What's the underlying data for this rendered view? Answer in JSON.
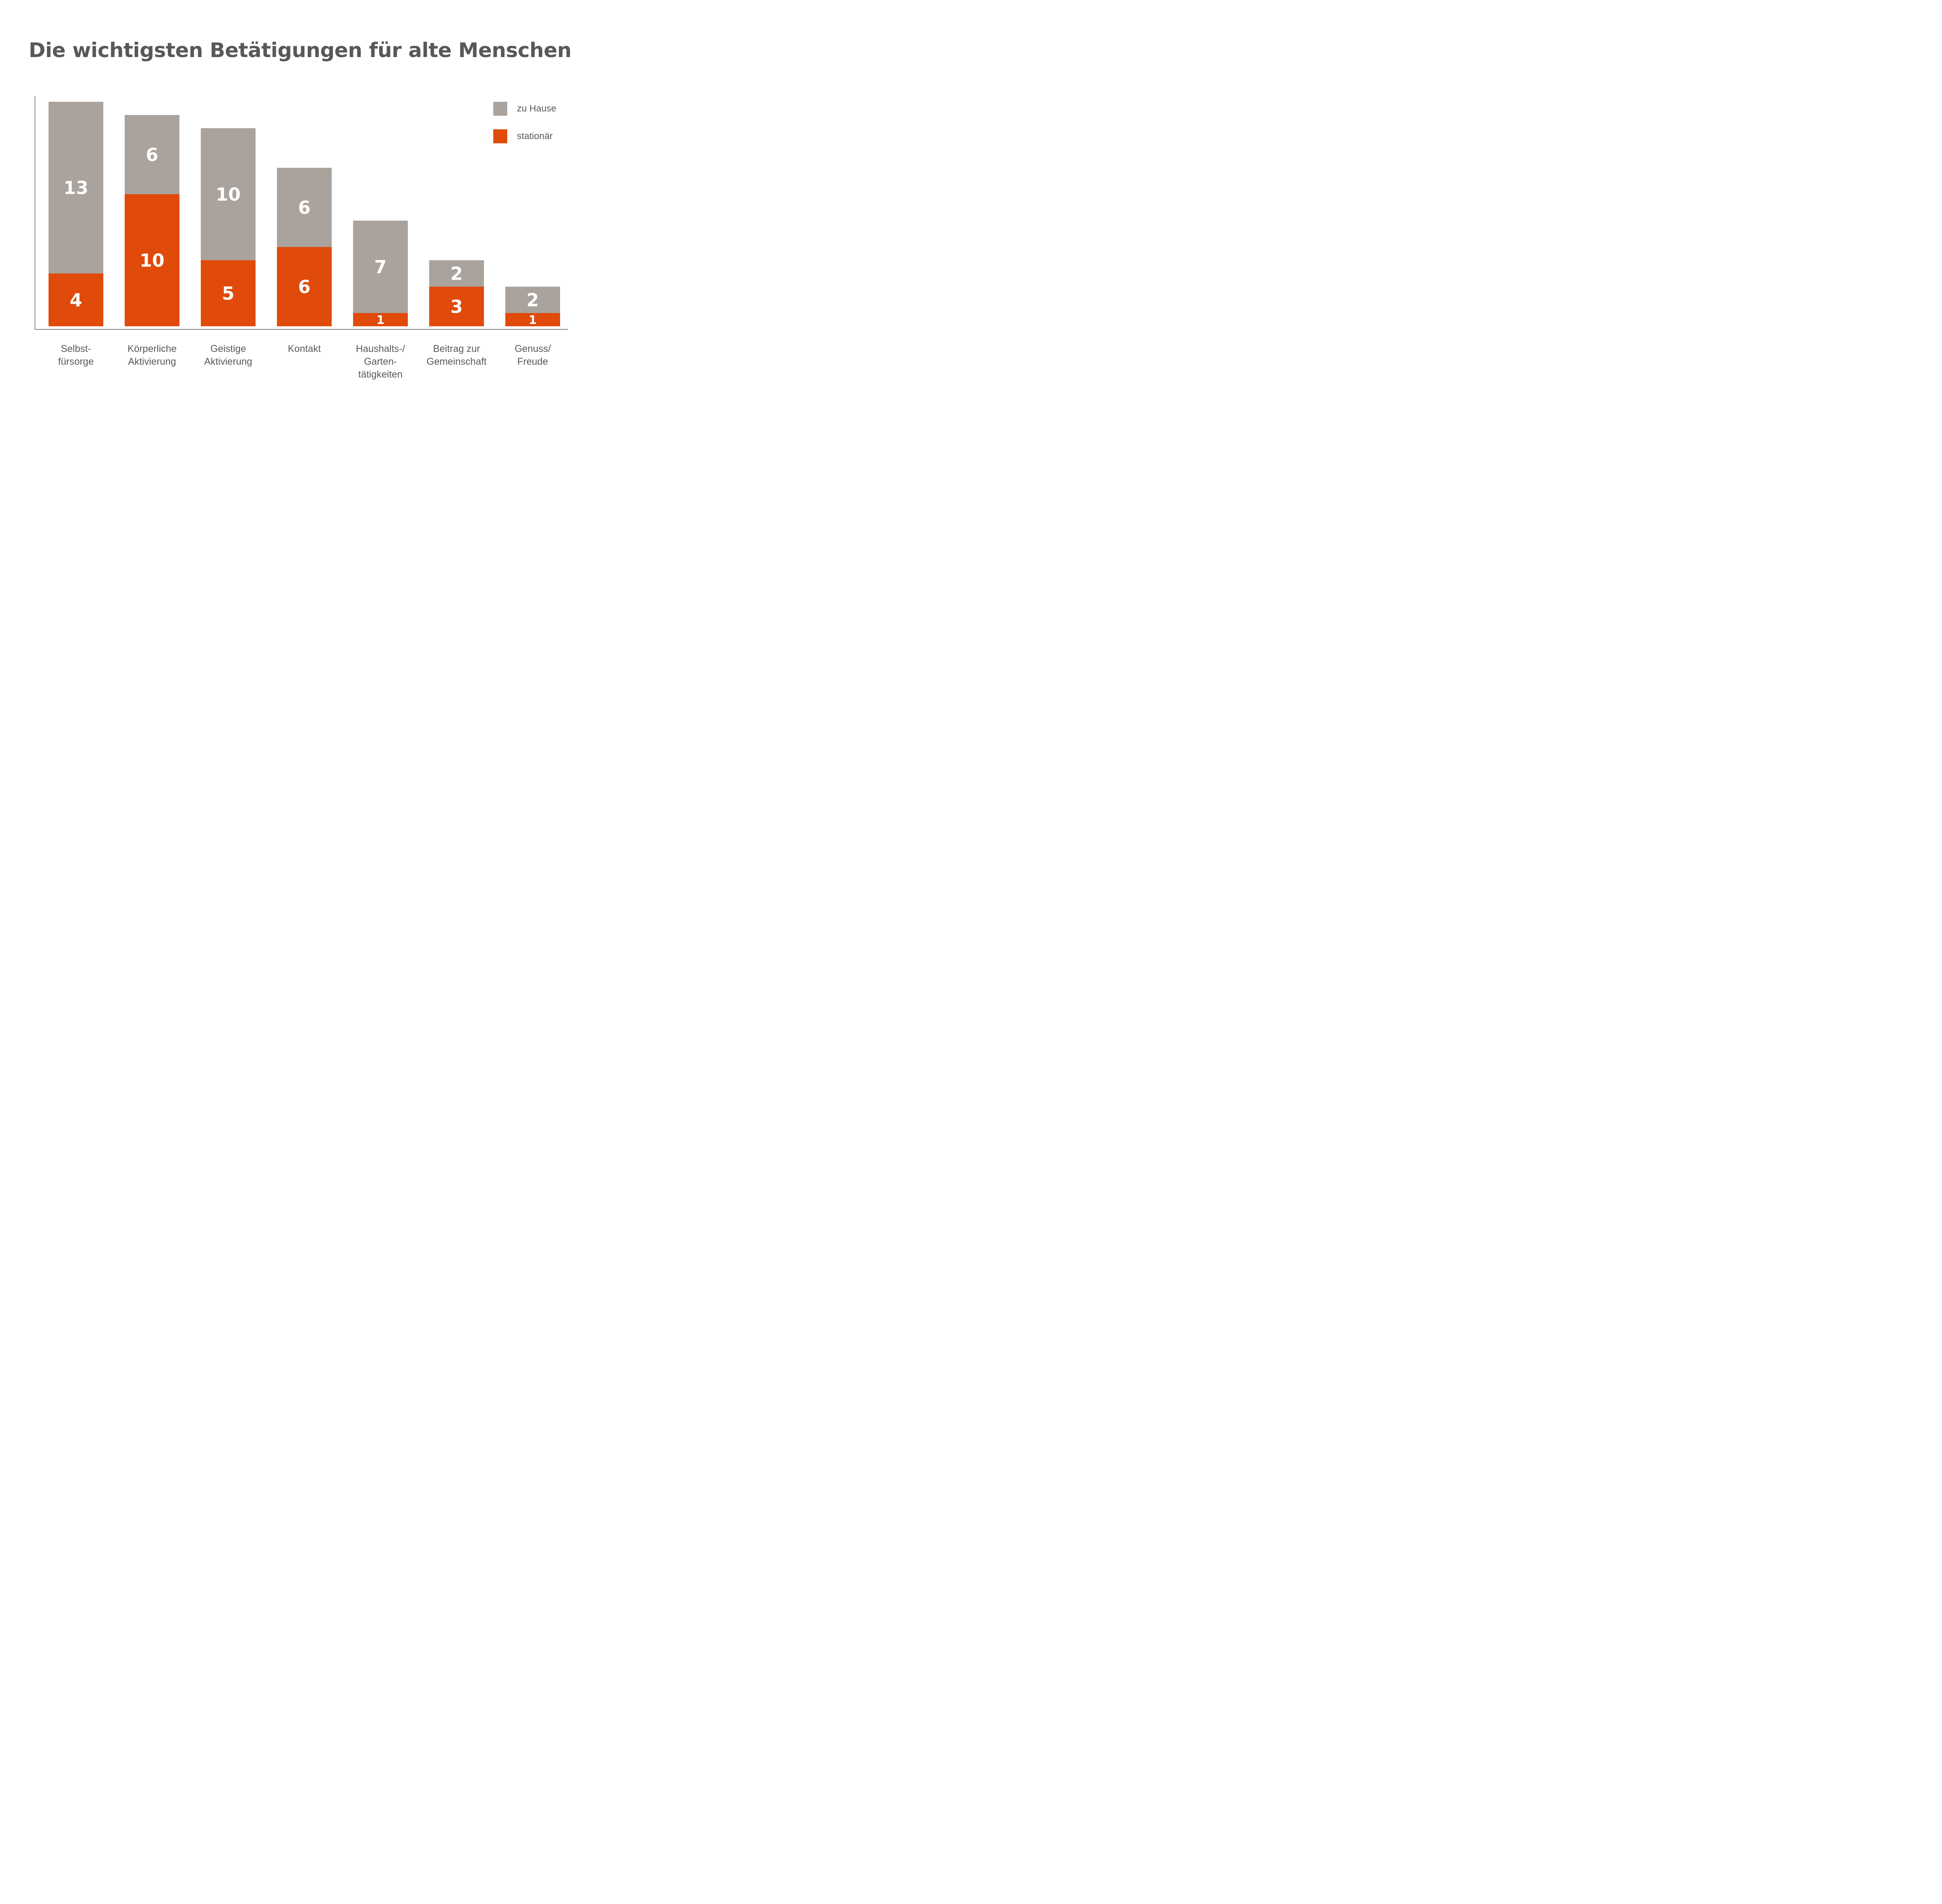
{
  "chart_data": {
    "type": "bar",
    "stacked": true,
    "title": "Die wichtigsten Betätigungen für alte Menschen",
    "xlabel": "",
    "ylabel": "",
    "ylim": [
      0,
      17
    ],
    "grid": false,
    "legend_position": "top-right",
    "categories": [
      [
        "Selbst-",
        "fürsorge"
      ],
      [
        "Körperliche",
        "Aktivierung"
      ],
      [
        "Geistige",
        "Aktivierung"
      ],
      [
        "Kontakt"
      ],
      [
        "Haushalts-/",
        "Garten-",
        "tätigkeiten"
      ],
      [
        "Beitrag zur",
        "Gemeinschaft"
      ],
      [
        "Genuss/",
        "Freude"
      ]
    ],
    "series": [
      {
        "name": "stationär",
        "color": "#E04A0A",
        "values": [
          4,
          10,
          5,
          6,
          1,
          3,
          1
        ]
      },
      {
        "name": "zu Hause",
        "color": "#AAA39D",
        "values": [
          13,
          6,
          10,
          6,
          7,
          2,
          2
        ]
      }
    ]
  },
  "legend": {
    "items": [
      {
        "label": "zu Hause",
        "color": "#AAA39D"
      },
      {
        "label": "stationär",
        "color": "#E04A0A"
      }
    ]
  },
  "colors": {
    "text": "#585856",
    "axis": "#585856",
    "label_on_bar": "#FFFFFF"
  }
}
